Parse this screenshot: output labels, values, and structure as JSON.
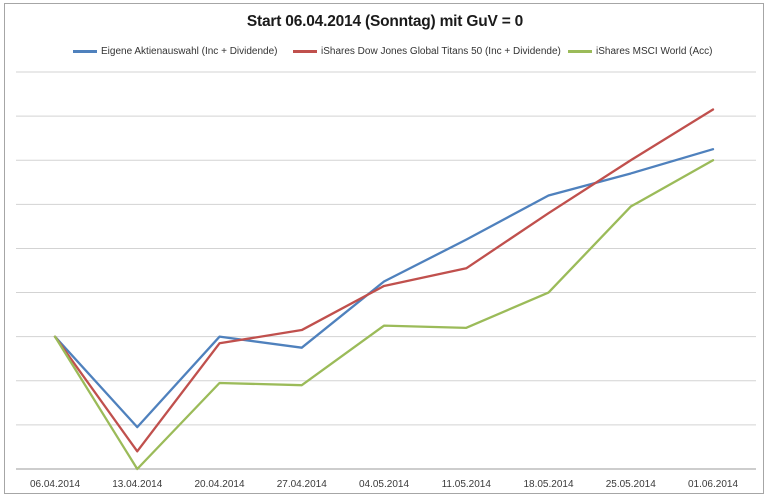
{
  "chart_data": {
    "type": "line",
    "title": "Start 06.04.2014 (Sonntag) mit GuV = 0",
    "x": [
      "06.04.2014",
      "13.04.2014",
      "20.04.2014",
      "27.04.2014",
      "04.05.2014",
      "11.05.2014",
      "18.05.2014",
      "25.05.2014",
      "01.06.2014"
    ],
    "series": [
      {
        "name": "Eigene Aktienauswahl (Inc + Dividende)",
        "color": "#4F81BD",
        "values": [
          0,
          -2.05,
          0.0,
          -0.25,
          1.25,
          2.2,
          3.2,
          3.7,
          4.25
        ]
      },
      {
        "name": "iShares Dow Jones Global Titans 50 (Inc + Dividende)",
        "color": "#C0504D",
        "values": [
          0,
          -2.6,
          -0.15,
          0.15,
          1.15,
          1.55,
          2.8,
          4.0,
          5.15
        ]
      },
      {
        "name": "iShares MSCI World (Acc)",
        "color": "#9BBB59",
        "values": [
          0,
          -3.0,
          -1.05,
          -1.1,
          0.25,
          0.2,
          1.0,
          2.95,
          4.0
        ]
      }
    ],
    "xlabel": "",
    "ylabel": "",
    "ylim": [
      -3,
      6
    ],
    "gridline_step": 1,
    "y_axis_labels_visible": false,
    "grid": "horizontal",
    "legend_position": "top",
    "colors": {
      "gridline": "#D3D3D3",
      "axis_line": "#9B9B9B",
      "chart_border": "#A6A6A6",
      "tick_text": "#3A3A3A",
      "title_text": "#1A1A1A"
    }
  }
}
